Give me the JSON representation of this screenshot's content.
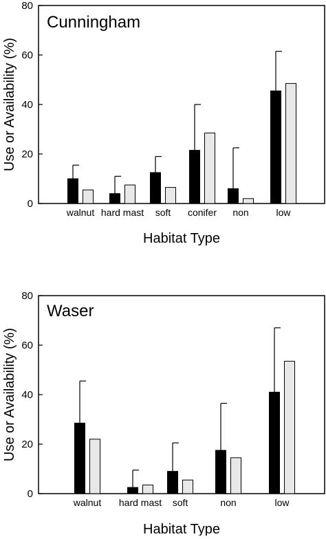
{
  "figure": {
    "panel_1": {
      "title": "Cunningham",
      "ylabel": "Use or Availability (%)",
      "xlabel": "Habitat Type"
    },
    "panel_2": {
      "title": "Waser",
      "ylabel": "Use or Availability (%)",
      "xlabel": "Habitat Type"
    }
  },
  "chart_data": [
    {
      "type": "bar",
      "title": "Cunningham",
      "xlabel": "Habitat Type",
      "ylabel": "Use or Availability (%)",
      "ylim": [
        0,
        80
      ],
      "yticks": [
        0,
        20,
        40,
        60,
        80
      ],
      "grid": false,
      "categories": [
        "walnut",
        "hard mast",
        "soft",
        "conifer",
        "non",
        "low"
      ],
      "series": [
        {
          "values": [
            10,
            4,
            12.5,
            21.5,
            6,
            45.5
          ],
          "error_upper": [
            15.5,
            11,
            19,
            40,
            22.5,
            61.5
          ],
          "color": "#000000"
        },
        {
          "values": [
            5.5,
            7.5,
            6.5,
            28.5,
            2,
            48.5
          ],
          "color": "#e8e8e8"
        }
      ]
    },
    {
      "type": "bar",
      "title": "Waser",
      "xlabel": "Habitat Type",
      "ylabel": "Use or Availability (%)",
      "ylim": [
        0,
        80
      ],
      "yticks": [
        0,
        20,
        40,
        60,
        80
      ],
      "grid": false,
      "categories": [
        "walnut",
        "hard mast",
        "soft",
        "non",
        "low"
      ],
      "series": [
        {
          "values": [
            28.5,
            2.5,
            9,
            17.5,
            41
          ],
          "error_upper": [
            45.5,
            9.5,
            20.5,
            36.5,
            67
          ],
          "color": "#000000"
        },
        {
          "values": [
            22,
            3.5,
            5.5,
            14.5,
            53.5
          ],
          "color": "#e8e8e8"
        }
      ]
    }
  ]
}
